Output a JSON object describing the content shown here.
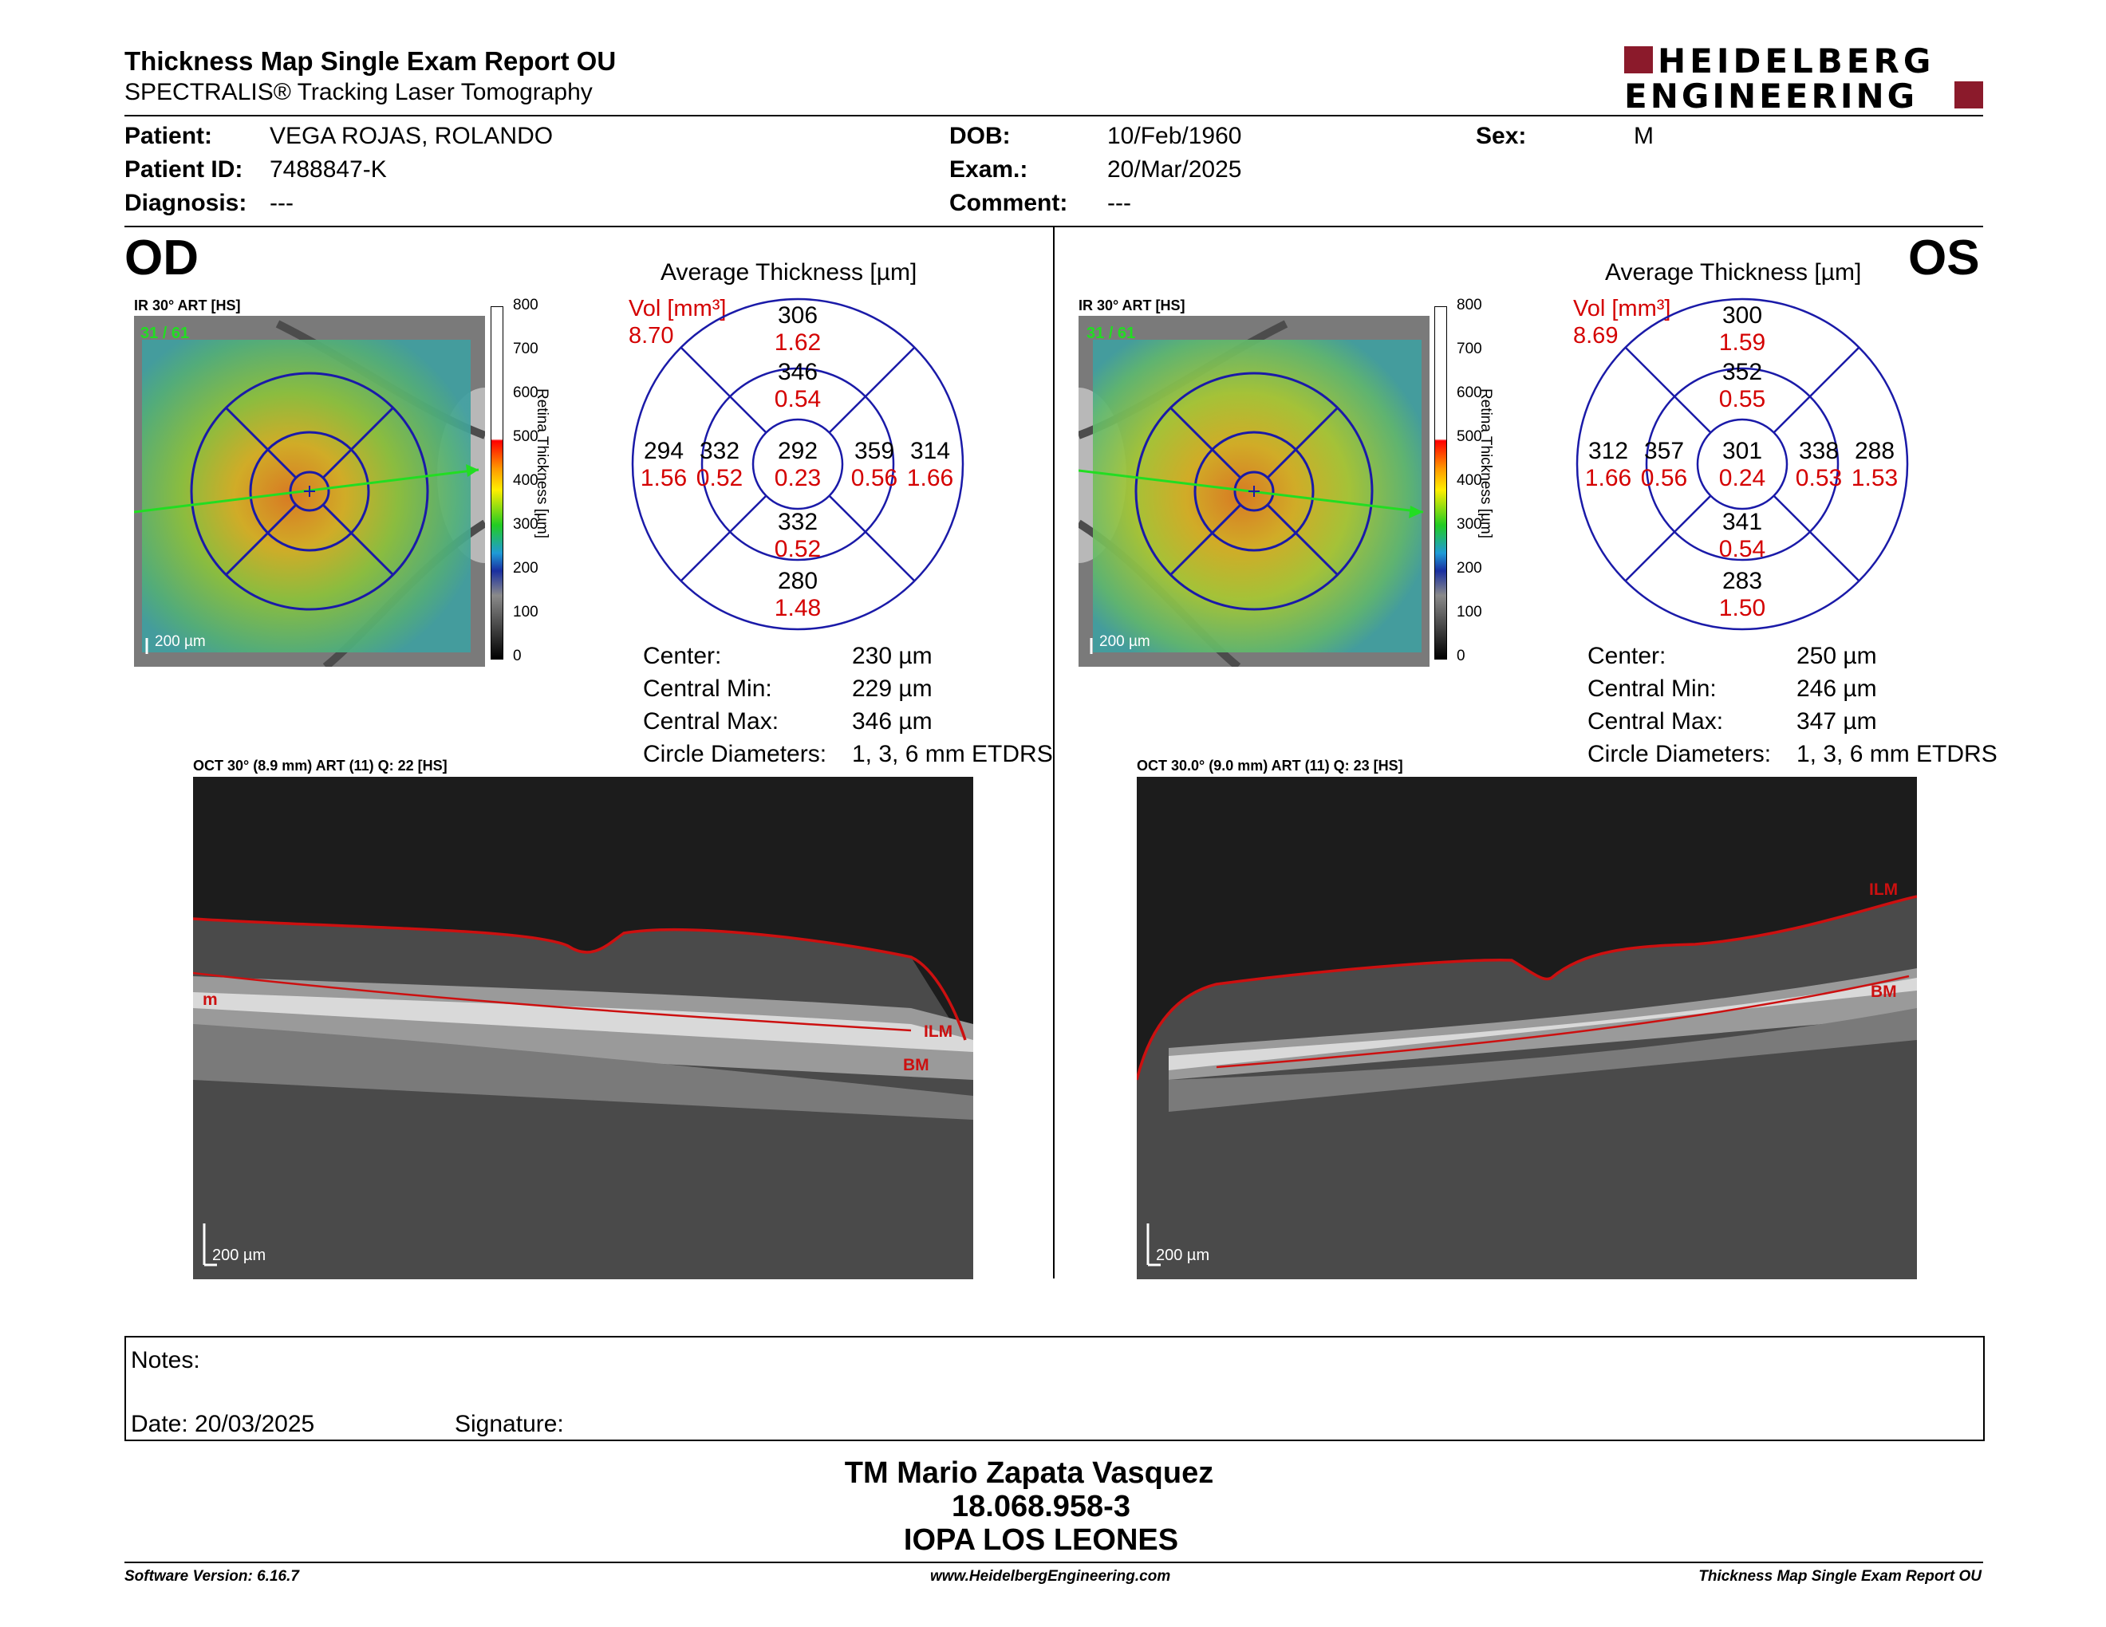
{
  "header": {
    "title": "Thickness Map Single Exam Report OU",
    "subtitle": "SPECTRALIS® Tracking Laser Tomography",
    "logo_line1": "HEIDELBERG",
    "logo_line2": "ENGINEERING"
  },
  "patient": {
    "patient_label": "Patient:",
    "patient_value": "VEGA ROJAS, ROLANDO",
    "id_label": "Patient ID:",
    "id_value": "7488847-K",
    "diagnosis_label": "Diagnosis:",
    "diagnosis_value": "---",
    "dob_label": "DOB:",
    "dob_value": "10/Feb/1960",
    "exam_label": "Exam.:",
    "exam_value": "20/Mar/2025",
    "comment_label": "Comment:",
    "comment_value": "---",
    "sex_label": "Sex:",
    "sex_value": "M"
  },
  "colorbar": {
    "ticks": [
      "800",
      "700",
      "600",
      "500",
      "400",
      "300",
      "200",
      "100",
      "0"
    ],
    "label": "Retina Thickness [µm]"
  },
  "od": {
    "eye": "OD",
    "ir_label": "IR 30° ART [HS]",
    "ir_counter": "31 / 61",
    "scale": "200 µm",
    "avg_title": "Average Thickness [µm]",
    "vol_label": "Vol [mm³]",
    "vol_value": "8.70",
    "sectors": {
      "outer_sup": [
        "306",
        "1.62"
      ],
      "inner_sup": [
        "346",
        "0.54"
      ],
      "outer_temp": [
        "294",
        "1.56"
      ],
      "inner_temp": [
        "332",
        "0.52"
      ],
      "center": [
        "292",
        "0.23"
      ],
      "inner_nas": [
        "359",
        "0.56"
      ],
      "outer_nas": [
        "314",
        "1.66"
      ],
      "inner_inf": [
        "332",
        "0.52"
      ],
      "outer_inf": [
        "280",
        "1.48"
      ]
    },
    "stats": [
      {
        "label": "Center:",
        "value": "230 µm"
      },
      {
        "label": "Central Min:",
        "value": "229 µm"
      },
      {
        "label": "Central Max:",
        "value": "346 µm"
      },
      {
        "label": "Circle Diameters:",
        "value": "1, 3, 6 mm ETDRS"
      }
    ],
    "oct_label": "OCT 30° (8.9 mm) ART (11) Q: 22 [HS]",
    "oct_scale": "200 µm",
    "layer_ilm": "ILM",
    "layer_bm": "BM",
    "layer_edge": "m"
  },
  "os": {
    "eye": "OS",
    "ir_label": "IR 30° ART [HS]",
    "ir_counter": "31 / 61",
    "scale": "200 µm",
    "avg_title": "Average Thickness [µm]",
    "vol_label": "Vol [mm³]",
    "vol_value": "8.69",
    "sectors": {
      "outer_sup": [
        "300",
        "1.59"
      ],
      "inner_sup": [
        "352",
        "0.55"
      ],
      "outer_temp": [
        "312",
        "1.66"
      ],
      "inner_temp": [
        "357",
        "0.56"
      ],
      "center": [
        "301",
        "0.24"
      ],
      "inner_nas": [
        "338",
        "0.53"
      ],
      "outer_nas": [
        "288",
        "1.53"
      ],
      "inner_inf": [
        "341",
        "0.54"
      ],
      "outer_inf": [
        "283",
        "1.50"
      ]
    },
    "stats": [
      {
        "label": "Center:",
        "value": "250 µm"
      },
      {
        "label": "Central Min:",
        "value": "246 µm"
      },
      {
        "label": "Central Max:",
        "value": "347 µm"
      },
      {
        "label": "Circle Diameters:",
        "value": "1, 3, 6 mm ETDRS"
      }
    ],
    "oct_label": "OCT 30.0° (9.0 mm) ART (11) Q: 23 [HS]",
    "oct_scale": "200 µm",
    "layer_ilm": "ILM",
    "layer_bm": "BM"
  },
  "notes": {
    "notes_label": "Notes:",
    "date_label": "Date: 20/03/2025",
    "signature_label": "Signature:"
  },
  "signer": {
    "name": "TM Mario Zapata Vasquez",
    "rut": "18.068.958-3",
    "institution": "IOPA LOS LEONES"
  },
  "footer": {
    "software": "Software Version: 6.16.7",
    "website": "www.HeidelbergEngineering.com",
    "report": "Thickness Map Single Exam Report OU"
  },
  "colors": {
    "brand": "#8b1a2b",
    "grid": "#1a1aa8",
    "volume": "#d40000",
    "layer": "#cc1010",
    "scan": "#22dd22"
  }
}
